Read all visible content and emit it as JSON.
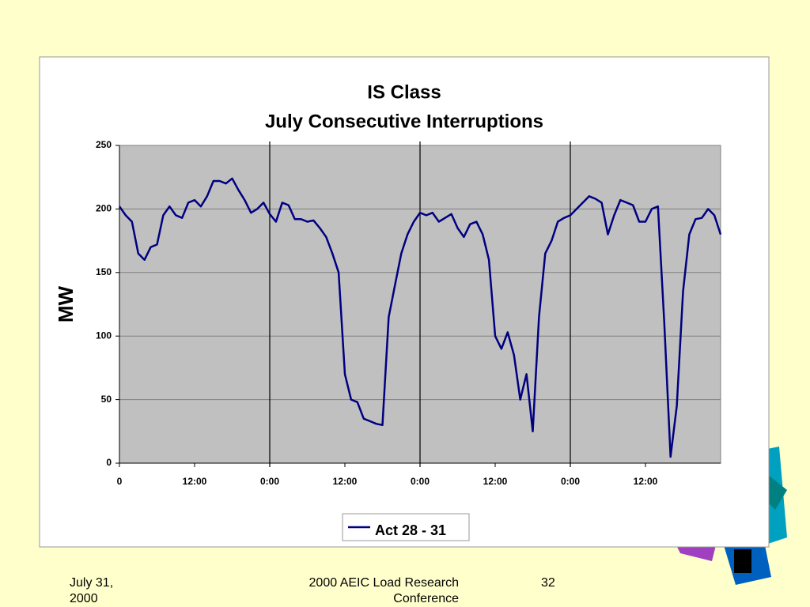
{
  "chart_data": {
    "type": "line",
    "title": "IS Class",
    "subtitle": "July Consecutive Interruptions",
    "ylabel": "MW",
    "x": [
      0,
      1,
      2,
      3,
      4,
      5,
      6,
      7,
      8,
      9,
      10,
      11,
      12,
      13,
      14,
      15,
      16,
      17,
      18,
      19,
      20,
      21,
      22,
      23,
      24,
      25,
      26,
      27,
      28,
      29,
      30,
      31,
      32,
      33,
      34,
      35,
      36,
      37,
      38,
      39,
      40,
      41,
      42,
      43,
      44,
      45,
      46,
      47,
      48,
      49,
      50,
      51,
      52,
      53,
      54,
      55,
      56,
      57,
      58,
      59,
      60,
      61,
      62,
      63,
      64,
      65,
      66,
      67,
      68,
      69,
      70,
      71,
      72,
      73,
      74,
      75,
      76,
      77,
      78,
      79,
      80,
      81,
      82,
      83,
      84,
      85,
      86,
      87,
      88,
      89,
      90,
      91,
      92,
      93,
      94,
      95,
      96
    ],
    "series": [
      {
        "name": "Act 28 - 31",
        "color": "#000080",
        "values": [
          202,
          195,
          190,
          165,
          160,
          170,
          172,
          195,
          202,
          195,
          193,
          205,
          207,
          202,
          210,
          222,
          222,
          220,
          224,
          215,
          207,
          197,
          200,
          205,
          196,
          190,
          205,
          203,
          192,
          192,
          190,
          191,
          185,
          178,
          165,
          150,
          70,
          50,
          48,
          35,
          33,
          31,
          30,
          115,
          140,
          165,
          180,
          190,
          197,
          195,
          197,
          190,
          193,
          196,
          185,
          178,
          188,
          190,
          180,
          160,
          100,
          90,
          103,
          85,
          50,
          70,
          25,
          115,
          165,
          175,
          190,
          193,
          195,
          200,
          205,
          210,
          208,
          205,
          180,
          195,
          207,
          205,
          203,
          190,
          190,
          200,
          202,
          110,
          5,
          45,
          135,
          180,
          192,
          193,
          200,
          195,
          180
        ]
      }
    ],
    "xlim": [
      0,
      96
    ],
    "xticks": [
      0,
      {
        "value": 12,
        "label": "12:00"
      },
      {
        "value": 24,
        "label": "0:00"
      },
      {
        "value": 36,
        "label": "12:00"
      },
      {
        "value": 48,
        "label": "0:00"
      },
      {
        "value": 60,
        "label": "12:00"
      },
      {
        "value": 72,
        "label": "0:00"
      },
      {
        "value": 84,
        "label": "12:00"
      }
    ],
    "day_lines": [
      24,
      48,
      72
    ],
    "ylim": [
      0,
      250
    ],
    "yticks": [
      0,
      50,
      100,
      150,
      200,
      250
    ],
    "grid": true,
    "legend": "bottom"
  },
  "footer": {
    "date": "July 31, 2000",
    "event": "2000 AEIC Load Research Conference",
    "page": "32"
  }
}
